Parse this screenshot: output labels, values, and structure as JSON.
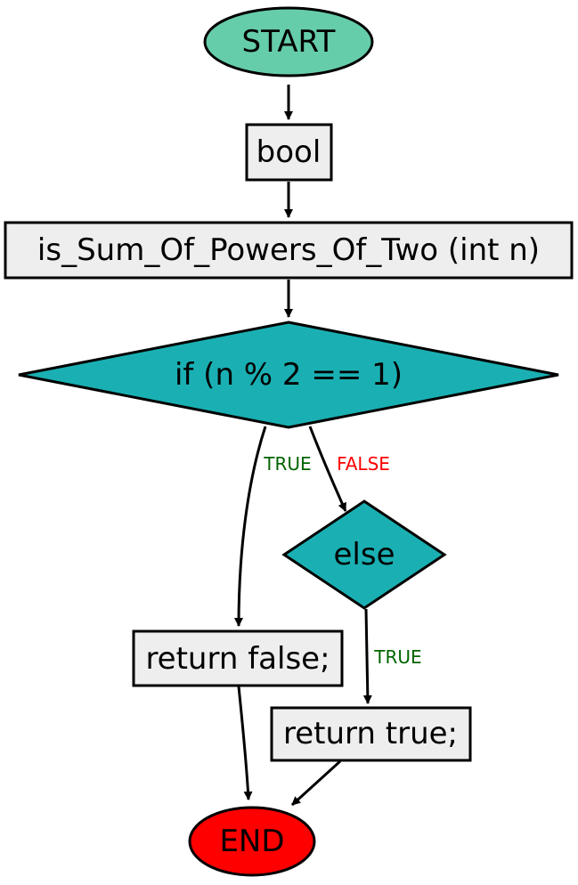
{
  "colors": {
    "terminal_start": "#66cdaa",
    "terminal_end": "#ff0000",
    "process": "#eeeeee",
    "decision": "#1ab0b3",
    "label_true": "#006400",
    "label_false": "#ff0000"
  },
  "nodes": {
    "start": {
      "text": "START",
      "shape": "ellipse"
    },
    "bool": {
      "text": "bool",
      "shape": "rect"
    },
    "signature": {
      "text": "is_Sum_Of_Powers_Of_Two (int n)",
      "shape": "rect"
    },
    "if": {
      "text": "if (n % 2 == 1)",
      "shape": "diamond"
    },
    "else": {
      "text": "else",
      "shape": "diamond"
    },
    "return_false": {
      "text": "return false;",
      "shape": "rect"
    },
    "return_true": {
      "text": "return true;",
      "shape": "rect"
    },
    "end": {
      "text": "END",
      "shape": "ellipse"
    }
  },
  "edges": {
    "start_bool": {
      "from": "start",
      "to": "bool",
      "label": ""
    },
    "bool_signature": {
      "from": "bool",
      "to": "signature",
      "label": ""
    },
    "signature_if": {
      "from": "signature",
      "to": "if",
      "label": ""
    },
    "if_true": {
      "from": "if",
      "to": "return_false",
      "label": "TRUE"
    },
    "if_false": {
      "from": "if",
      "to": "else",
      "label": "FALSE"
    },
    "else_true": {
      "from": "else",
      "to": "return_true",
      "label": "TRUE"
    },
    "return_false_end": {
      "from": "return_false",
      "to": "end",
      "label": ""
    },
    "return_true_end": {
      "from": "return_true",
      "to": "end",
      "label": ""
    }
  }
}
